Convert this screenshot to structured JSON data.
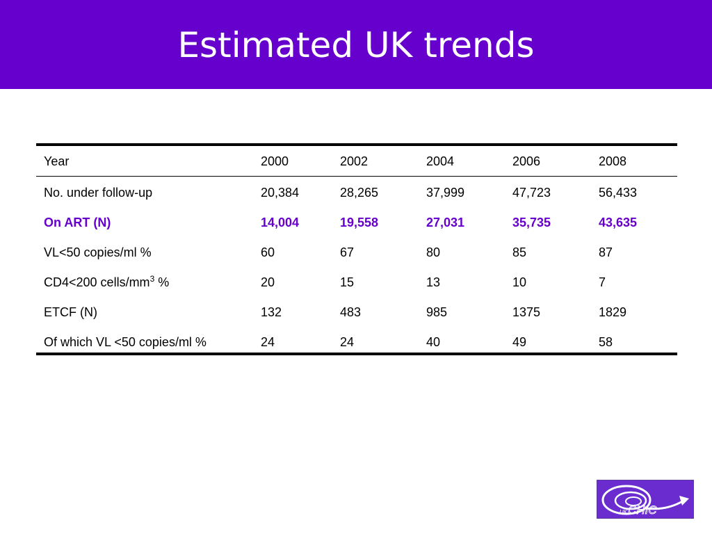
{
  "slide": {
    "title": "Estimated UK trends"
  },
  "table": {
    "headers": [
      "Year",
      "2000",
      "2002",
      "2004",
      "2006",
      "2008"
    ],
    "rows": [
      {
        "label": "No. under follow-up",
        "values": [
          "20,384",
          "28,265",
          "37,999",
          "47,723",
          "56,433"
        ]
      },
      {
        "label": "On ART (N)",
        "values": [
          "14,004",
          "19,558",
          "27,031",
          "35,735",
          "43,635"
        ]
      },
      {
        "label": "VL<50 copies/ml %",
        "values": [
          "60",
          "67",
          "80",
          "85",
          "87"
        ]
      },
      {
        "label_pre": "CD4<200 cells/mm",
        "label_sup": "3",
        "label_post": " %",
        "values": [
          "20",
          "15",
          "13",
          "10",
          "7"
        ]
      },
      {
        "label": "ETCF (N)",
        "values": [
          "132",
          "483",
          "985",
          "1375",
          "1829"
        ]
      },
      {
        "label": "Of which VL <50 copies/ml %",
        "values": [
          "24",
          "24",
          "40",
          "49",
          "58"
        ]
      }
    ]
  },
  "logo": {
    "text": "UK CHIC",
    "colors": {
      "background": "#6a2ccf",
      "mark": "#ffffff"
    }
  },
  "colors": {
    "title_bar": "#6600cc",
    "title_text": "#ffffff",
    "highlight_row": "#6600cc"
  }
}
